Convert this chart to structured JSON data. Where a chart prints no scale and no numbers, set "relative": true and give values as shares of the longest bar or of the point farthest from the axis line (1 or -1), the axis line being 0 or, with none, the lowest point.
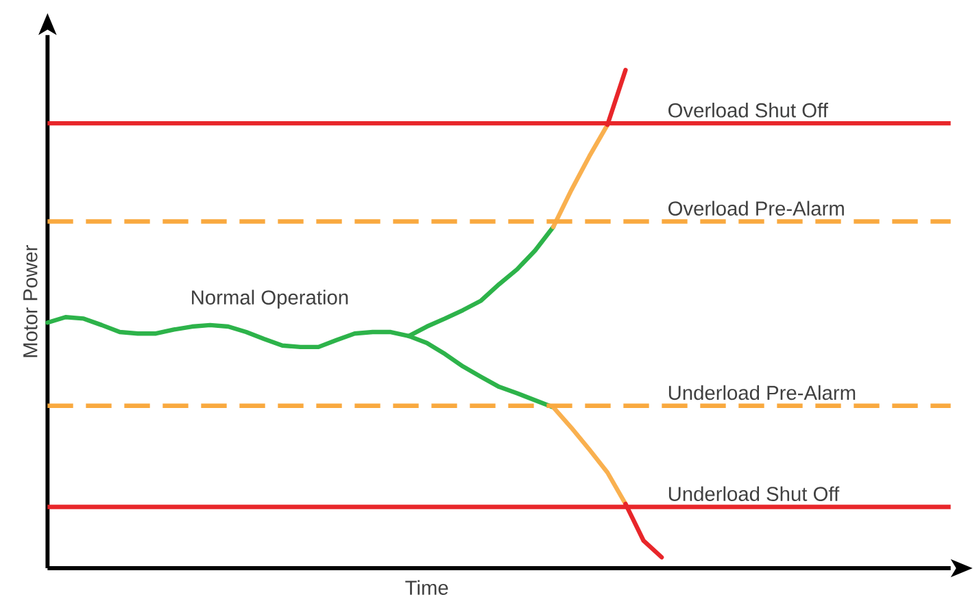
{
  "chart_data": {
    "type": "line",
    "relative": true,
    "xlabel": "Time",
    "ylabel": "Motor Power",
    "tick_labels": false,
    "marker": "none",
    "categories": [
      null,
      null,
      null,
      null,
      null,
      null,
      null,
      null,
      null,
      null,
      null,
      null,
      null,
      null,
      null,
      null,
      null,
      null,
      null,
      null,
      null,
      null,
      null,
      null,
      null,
      null,
      null,
      null,
      null,
      null,
      null,
      null,
      null,
      null,
      null,
      null,
      null,
      null,
      null,
      null,
      null,
      null,
      null,
      null,
      null,
      null,
      null,
      null,
      null,
      null,
      null
    ],
    "series": [
      {
        "color": "#2db34a",
        "values": [
          0.493,
          0.504,
          0.501,
          0.488,
          0.474,
          0.471,
          0.471,
          0.479,
          0.485,
          0.488,
          0.485,
          0.474,
          0.46,
          0.447,
          0.444,
          0.444,
          0.458,
          0.471,
          0.474,
          0.474,
          0.466,
          0.452,
          0.43,
          0.405,
          0.384,
          0.364,
          0.351,
          0.337,
          0.323,
          null,
          null,
          null,
          null,
          null,
          null,
          null,
          null,
          null,
          null,
          null,
          null,
          null,
          null,
          null,
          null,
          null,
          null,
          null,
          null,
          null,
          null
        ]
      },
      {
        "color": "#2db34a",
        "values": [
          null,
          null,
          null,
          null,
          null,
          null,
          null,
          null,
          null,
          null,
          null,
          null,
          null,
          null,
          null,
          null,
          null,
          null,
          null,
          null,
          0.466,
          0.485,
          0.501,
          0.518,
          0.537,
          0.57,
          0.6,
          0.638,
          0.685,
          null,
          null,
          null,
          null,
          null,
          null,
          null,
          null,
          null,
          null,
          null,
          null,
          null,
          null,
          null,
          null,
          null,
          null,
          null,
          null,
          null,
          null
        ]
      },
      {
        "color": "#f9b04f",
        "values": [
          null,
          null,
          null,
          null,
          null,
          null,
          null,
          null,
          null,
          null,
          null,
          null,
          null,
          null,
          null,
          null,
          null,
          null,
          null,
          null,
          null,
          null,
          null,
          null,
          null,
          null,
          null,
          null,
          0.685,
          0.759,
          0.827,
          0.89,
          null,
          null,
          null,
          null,
          null,
          null,
          null,
          null,
          null,
          null,
          null,
          null,
          null,
          null,
          null,
          null,
          null,
          null,
          null
        ]
      },
      {
        "color": "#e8262a",
        "values": [
          null,
          null,
          null,
          null,
          null,
          null,
          null,
          null,
          null,
          null,
          null,
          null,
          null,
          null,
          null,
          null,
          null,
          null,
          null,
          null,
          null,
          null,
          null,
          null,
          null,
          null,
          null,
          null,
          null,
          null,
          null,
          0.89,
          1,
          null,
          null,
          null,
          null,
          null,
          null,
          null,
          null,
          null,
          null,
          null,
          null,
          null,
          null,
          null,
          null,
          null,
          null
        ]
      },
      {
        "color": "#f9b04f",
        "values": [
          null,
          null,
          null,
          null,
          null,
          null,
          null,
          null,
          null,
          null,
          null,
          null,
          null,
          null,
          null,
          null,
          null,
          null,
          null,
          null,
          null,
          null,
          null,
          null,
          null,
          null,
          null,
          null,
          0.323,
          0.282,
          0.238,
          0.192,
          0.129,
          null,
          null,
          null,
          null,
          null,
          null,
          null,
          null,
          null,
          null,
          null,
          null,
          null,
          null,
          null,
          null,
          null,
          null
        ]
      },
      {
        "color": "#e8262a",
        "values": [
          null,
          null,
          null,
          null,
          null,
          null,
          null,
          null,
          null,
          null,
          null,
          null,
          null,
          null,
          null,
          null,
          null,
          null,
          null,
          null,
          null,
          null,
          null,
          null,
          null,
          null,
          null,
          null,
          null,
          null,
          null,
          null,
          0.129,
          0.055,
          0.022,
          null,
          null,
          null,
          null,
          null,
          null,
          null,
          null,
          null,
          null,
          null,
          null,
          null,
          null,
          null,
          null
        ]
      }
    ],
    "ref_lines": [
      {
        "axis": "y",
        "value": 0.893,
        "label": "Overload Shut Off",
        "color": "#e8262a",
        "line_style": "solid"
      },
      {
        "axis": "y",
        "value": 0.696,
        "label": "Overload Pre-Alarm",
        "color": "#f9a93f",
        "line_style": "dashed"
      },
      {
        "axis": "y",
        "value": 0.326,
        "label": "Underload Pre-Alarm",
        "color": "#f9a93f",
        "line_style": "dashed"
      },
      {
        "axis": "y",
        "value": 0.123,
        "label": "Underload Shut Off",
        "color": "#e8262a",
        "line_style": "solid"
      }
    ],
    "annotations": [
      "Normal Operation"
    ]
  }
}
